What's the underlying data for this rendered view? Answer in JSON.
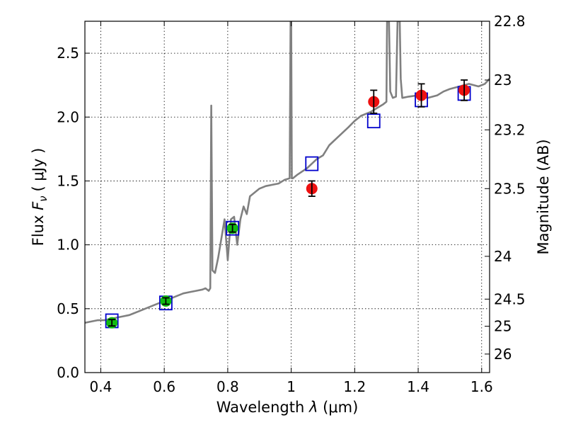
{
  "chart_data": {
    "type": "scatter",
    "xlabel_main": "Wavelength",
    "xlabel_symbol": "λ",
    "xlabel_unit": "(μm)",
    "ylabel_main": "Flux",
    "ylabel_symbol": "F",
    "ylabel_sub": "ν",
    "ylabel_unit": "( μJy )",
    "y2label": "Magnitude (AB)",
    "xlim": [
      0.35,
      1.625
    ],
    "ylim": [
      0.0,
      2.75
    ],
    "grid": true,
    "x_ticks": [
      0.4,
      0.6,
      0.8,
      1.0,
      1.2,
      1.4,
      1.6
    ],
    "x_tick_labels": [
      "0.4",
      "0.6",
      "0.8",
      "1",
      "1.2",
      "1.4",
      "1.6"
    ],
    "y_ticks": [
      0.0,
      0.5,
      1.0,
      1.5,
      2.0,
      2.5
    ],
    "y_tick_labels": [
      "0.0",
      "0.5",
      "1.0",
      "1.5",
      "2.0",
      "2.5"
    ],
    "y2_ticks": [
      {
        "label": "22.8",
        "flux": 2.75
      },
      {
        "label": "23",
        "flux": 2.29
      },
      {
        "label": "23.2",
        "flux": 1.9
      },
      {
        "label": "23.5",
        "flux": 1.44
      },
      {
        "label": "24",
        "flux": 0.91
      },
      {
        "label": "24.5",
        "flux": 0.575
      },
      {
        "label": "25",
        "flux": 0.363
      },
      {
        "label": "26",
        "flux": 0.145
      }
    ],
    "series": [
      {
        "name": "model_spectrum",
        "kind": "line",
        "color": "#808080",
        "x": [
          0.35,
          0.37,
          0.39,
          0.41,
          0.43,
          0.45,
          0.47,
          0.49,
          0.5,
          0.52,
          0.54,
          0.56,
          0.58,
          0.6,
          0.62,
          0.64,
          0.66,
          0.68,
          0.7,
          0.72,
          0.73,
          0.74,
          0.745,
          0.748,
          0.752,
          0.76,
          0.77,
          0.78,
          0.79,
          0.8,
          0.81,
          0.82,
          0.83,
          0.84,
          0.85,
          0.86,
          0.87,
          0.88,
          0.9,
          0.92,
          0.94,
          0.96,
          0.98,
          0.995,
          0.998,
          1.0,
          1.002,
          1.005,
          1.01,
          1.02,
          1.05,
          1.08,
          1.1,
          1.12,
          1.15,
          1.18,
          1.2,
          1.22,
          1.25,
          1.27,
          1.29,
          1.3,
          1.302,
          1.305,
          1.308,
          1.312,
          1.32,
          1.33,
          1.335,
          1.338,
          1.342,
          1.345,
          1.35,
          1.37,
          1.4,
          1.43,
          1.46,
          1.48,
          1.5,
          1.53,
          1.56,
          1.59,
          1.61,
          1.625
        ],
        "y": [
          0.39,
          0.4,
          0.41,
          0.41,
          0.42,
          0.43,
          0.44,
          0.45,
          0.46,
          0.48,
          0.5,
          0.52,
          0.54,
          0.56,
          0.58,
          0.6,
          0.62,
          0.63,
          0.64,
          0.65,
          0.66,
          0.64,
          0.66,
          2.09,
          0.8,
          0.78,
          0.9,
          1.05,
          1.2,
          0.88,
          1.2,
          1.22,
          1.0,
          1.2,
          1.3,
          1.24,
          1.38,
          1.4,
          1.44,
          1.46,
          1.47,
          1.48,
          1.51,
          1.52,
          2.75,
          2.75,
          1.52,
          1.52,
          1.53,
          1.55,
          1.6,
          1.67,
          1.7,
          1.78,
          1.85,
          1.92,
          1.97,
          2.01,
          2.04,
          2.07,
          2.1,
          2.12,
          2.75,
          2.75,
          2.75,
          2.2,
          2.15,
          2.16,
          2.75,
          2.75,
          2.75,
          2.3,
          2.15,
          2.16,
          2.17,
          2.15,
          2.17,
          2.2,
          2.22,
          2.24,
          2.26,
          2.24,
          2.26,
          2.3
        ]
      },
      {
        "name": "model_photometry",
        "kind": "open_square",
        "color": "#0000cc",
        "x": [
          0.435,
          0.605,
          0.815,
          1.065,
          1.26,
          1.41,
          1.545
        ],
        "y": [
          0.405,
          0.545,
          1.13,
          1.635,
          1.97,
          2.135,
          2.185
        ]
      },
      {
        "name": "observed_optical",
        "kind": "circle",
        "color": "#11bb11",
        "x": [
          0.435,
          0.605,
          0.815
        ],
        "y": [
          0.39,
          0.56,
          1.13
        ],
        "err": [
          0.025,
          0.025,
          0.03
        ]
      },
      {
        "name": "observed_nir",
        "kind": "circle",
        "color": "#ee1111",
        "x": [
          1.065,
          1.26,
          1.41,
          1.545
        ],
        "y": [
          1.44,
          2.12,
          2.17,
          2.21
        ],
        "err": [
          0.06,
          0.09,
          0.09,
          0.08
        ]
      }
    ]
  }
}
